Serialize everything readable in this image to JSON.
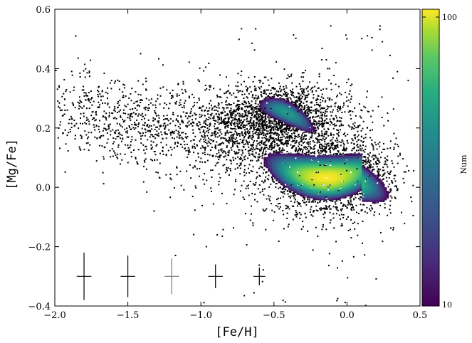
{
  "chart_data": {
    "type": "scatter",
    "title": "",
    "xlabel": "[Fe/H]",
    "ylabel": "[Mg/Fe]",
    "xlim": [
      -2.0,
      0.5
    ],
    "ylim": [
      -0.4,
      0.6
    ],
    "xticks": [
      -2.0,
      -1.5,
      -1.0,
      -0.5,
      0.0,
      0.5
    ],
    "xtick_labels": [
      "−2.0",
      "−1.5",
      "−1.0",
      "−0.5",
      "0.0",
      "0.5"
    ],
    "yticks": [
      -0.4,
      -0.2,
      0.0,
      0.2,
      0.4,
      0.6
    ],
    "ytick_labels": [
      "−0.4",
      "−0.2",
      "0.0",
      "0.2",
      "0.4",
      "0.6"
    ],
    "grid": false,
    "scatter_color": "#000000",
    "density_populations": [
      {
        "name": "",
        "center": [
          -0.15,
          0.03
        ],
        "spread": [
          0.28,
          0.05
        ],
        "max_count": 100
      },
      {
        "name": "",
        "center": [
          -0.42,
          0.25
        ],
        "spread": [
          0.17,
          0.035
        ],
        "max_count": 35
      }
    ],
    "error_bars": [
      {
        "x": -1.8,
        "y": -0.3,
        "xerr": 0.05,
        "yerr": 0.08
      },
      {
        "x": -1.5,
        "y": -0.3,
        "xerr": 0.05,
        "yerr": 0.07
      },
      {
        "x": -1.2,
        "y": -0.3,
        "xerr": 0.05,
        "yerr": 0.06
      },
      {
        "x": -0.9,
        "y": -0.3,
        "xerr": 0.05,
        "yerr": 0.04
      },
      {
        "x": -0.6,
        "y": -0.3,
        "xerr": 0.04,
        "yerr": 0.03
      }
    ],
    "colorbar": {
      "label": "Num",
      "scale": "log",
      "range": [
        10,
        100
      ],
      "tick_labels": [
        "100",
        "10"
      ],
      "colormap": "viridis"
    }
  }
}
